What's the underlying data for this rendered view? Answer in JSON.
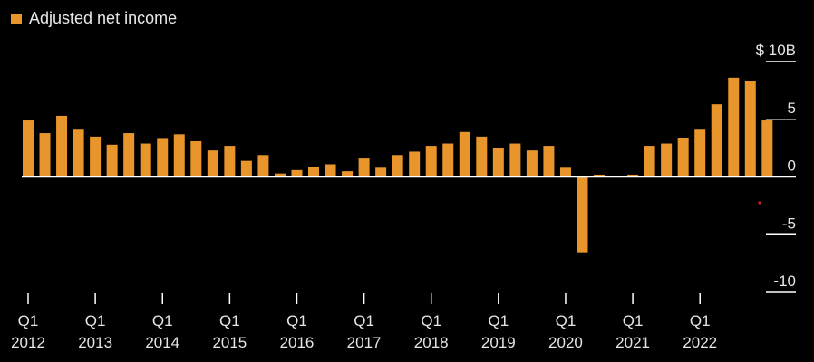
{
  "chart_data": {
    "type": "bar",
    "legend": {
      "label": "Adjusted net income",
      "position": "top-left"
    },
    "colors": {
      "bar": "#E8962C",
      "background": "#000000",
      "zero_line": "#ffffff",
      "axis_text": "#e6e6e6",
      "annotation_dot": "#cc2222"
    },
    "yaxis": {
      "ylim": [
        -10,
        10
      ],
      "ticks": [
        {
          "value": 10,
          "label": "$ 10B"
        },
        {
          "value": 5,
          "label": "5"
        },
        {
          "value": 0,
          "label": "0"
        },
        {
          "value": -5,
          "label": "-5"
        },
        {
          "value": -10,
          "label": "-10"
        }
      ]
    },
    "xaxis": {
      "year_ticks": [
        {
          "index": 0,
          "quarter": "Q1",
          "year": "2012"
        },
        {
          "index": 4,
          "quarter": "Q1",
          "year": "2013"
        },
        {
          "index": 8,
          "quarter": "Q1",
          "year": "2014"
        },
        {
          "index": 12,
          "quarter": "Q1",
          "year": "2015"
        },
        {
          "index": 16,
          "quarter": "Q1",
          "year": "2016"
        },
        {
          "index": 20,
          "quarter": "Q1",
          "year": "2017"
        },
        {
          "index": 24,
          "quarter": "Q1",
          "year": "2018"
        },
        {
          "index": 28,
          "quarter": "Q1",
          "year": "2019"
        },
        {
          "index": 32,
          "quarter": "Q1",
          "year": "2020"
        },
        {
          "index": 36,
          "quarter": "Q1",
          "year": "2021"
        },
        {
          "index": 40,
          "quarter": "Q1",
          "year": "2022"
        }
      ]
    },
    "series": [
      {
        "name": "Adjusted net income",
        "values": [
          4.9,
          3.8,
          5.3,
          4.1,
          3.5,
          2.8,
          3.8,
          2.9,
          3.3,
          3.7,
          3.1,
          2.3,
          2.7,
          1.4,
          1.9,
          0.3,
          0.6,
          0.9,
          1.1,
          0.5,
          1.6,
          0.8,
          1.9,
          2.2,
          2.7,
          2.9,
          3.9,
          3.5,
          2.5,
          2.9,
          2.3,
          2.7,
          0.8,
          -6.6,
          0.2,
          0.1,
          0.2,
          2.7,
          2.9,
          3.4,
          4.1,
          6.3,
          8.6,
          8.3,
          4.9
        ]
      }
    ]
  }
}
